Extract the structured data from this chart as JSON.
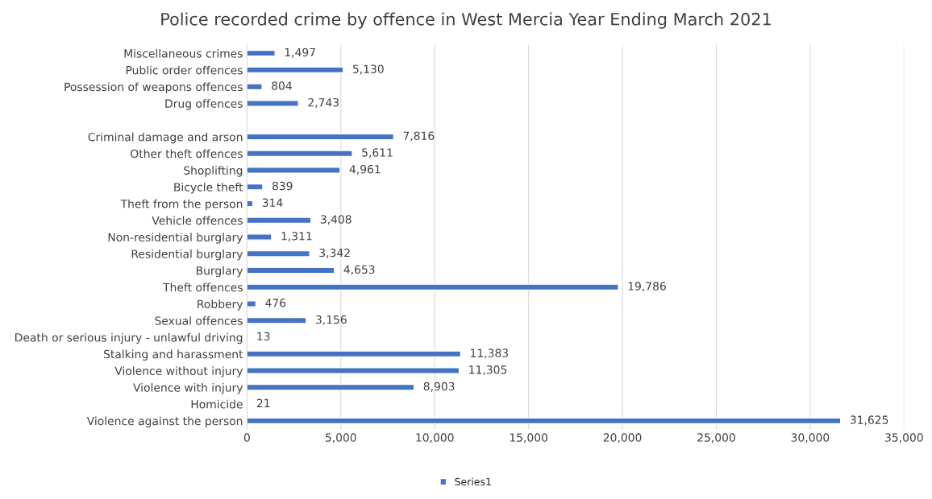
{
  "chart_data": {
    "type": "bar",
    "orientation": "horizontal",
    "title": "Police recorded crime by offence in West Mercia Year Ending March 2021",
    "categories": [
      "Miscellaneous crimes",
      "Public order offences",
      "Possession of weapons offences",
      "Drug offences",
      null,
      "Criminal damage and arson",
      "Other theft offences",
      "Shoplifting",
      "Bicycle theft",
      "Theft from the person",
      "Vehicle offences",
      "Non-residential burglary",
      "Residential burglary",
      "Burglary",
      "Theft offences",
      "Robbery",
      "Sexual offences",
      "Death or serious injury - unlawful driving",
      "Stalking and harassment",
      "Violence without injury",
      "Violence with injury",
      "Homicide",
      "Violence against the person"
    ],
    "series": [
      {
        "name": "Series1",
        "color": "#4472c4",
        "values": [
          1497,
          5130,
          804,
          2743,
          null,
          7816,
          5611,
          4961,
          839,
          314,
          3408,
          1311,
          3342,
          4653,
          19786,
          476,
          3156,
          13,
          11383,
          11305,
          8903,
          21,
          31625
        ],
        "value_labels": [
          "1,497",
          "5,130",
          "804",
          "2,743",
          null,
          "7,816",
          "5,611",
          "4,961",
          "839",
          "314",
          "3,408",
          "1,311",
          "3,342",
          "4,653",
          "19,786",
          "476",
          "3,156",
          "13",
          "11,383",
          "11,305",
          "8,903",
          "21",
          "31,625"
        ]
      }
    ],
    "xlim": [
      0,
      35000
    ],
    "xticks": [
      {
        "value": 0,
        "label": "0"
      },
      {
        "value": 5000,
        "label": "5,000"
      },
      {
        "value": 10000,
        "label": "10,000"
      },
      {
        "value": 15000,
        "label": "15,000"
      },
      {
        "value": 20000,
        "label": "20,000"
      },
      {
        "value": 25000,
        "label": "25,000"
      },
      {
        "value": 30000,
        "label": "30,000"
      },
      {
        "value": 35000,
        "label": "35,000"
      }
    ],
    "grid": "x",
    "legend": "bottom"
  }
}
